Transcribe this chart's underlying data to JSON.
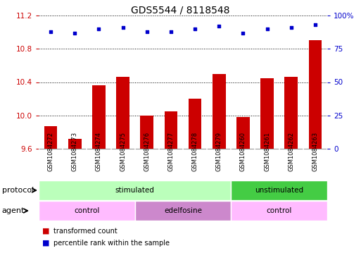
{
  "title": "GDS5544 / 8118548",
  "samples": [
    "GSM1084272",
    "GSM1084273",
    "GSM1084274",
    "GSM1084275",
    "GSM1084276",
    "GSM1084277",
    "GSM1084278",
    "GSM1084279",
    "GSM1084260",
    "GSM1084261",
    "GSM1084262",
    "GSM1084263"
  ],
  "bar_values": [
    9.87,
    9.72,
    10.36,
    10.46,
    10.0,
    10.05,
    10.2,
    10.5,
    9.98,
    10.45,
    10.46,
    10.9
  ],
  "percentile_values": [
    88,
    87,
    90,
    91,
    88,
    88,
    90,
    92,
    87,
    90,
    91,
    93
  ],
  "ylim_left": [
    9.6,
    11.2
  ],
  "ylim_right": [
    0,
    100
  ],
  "yticks_left": [
    9.6,
    10.0,
    10.4,
    10.8,
    11.2
  ],
  "yticks_right": [
    0,
    25,
    50,
    75,
    100
  ],
  "bar_color": "#cc0000",
  "dot_color": "#0000cc",
  "protocol_labels": [
    {
      "text": "stimulated",
      "start": 0,
      "end": 7,
      "color": "#bbffbb"
    },
    {
      "text": "unstimulated",
      "start": 8,
      "end": 11,
      "color": "#44cc44"
    }
  ],
  "agent_labels": [
    {
      "text": "control",
      "start": 0,
      "end": 3,
      "color": "#ffbbff"
    },
    {
      "text": "edelfosine",
      "start": 4,
      "end": 7,
      "color": "#cc88cc"
    },
    {
      "text": "control",
      "start": 8,
      "end": 11,
      "color": "#ffbbff"
    }
  ],
  "protocol_row_label": "protocol",
  "agent_row_label": "agent",
  "legend_bar_label": "transformed count",
  "legend_dot_label": "percentile rank within the sample",
  "axis_color_left": "#cc0000",
  "axis_color_right": "#0000cc",
  "bg_color": "#ffffff",
  "bar_width": 0.55,
  "sample_bg_color": "#cccccc"
}
